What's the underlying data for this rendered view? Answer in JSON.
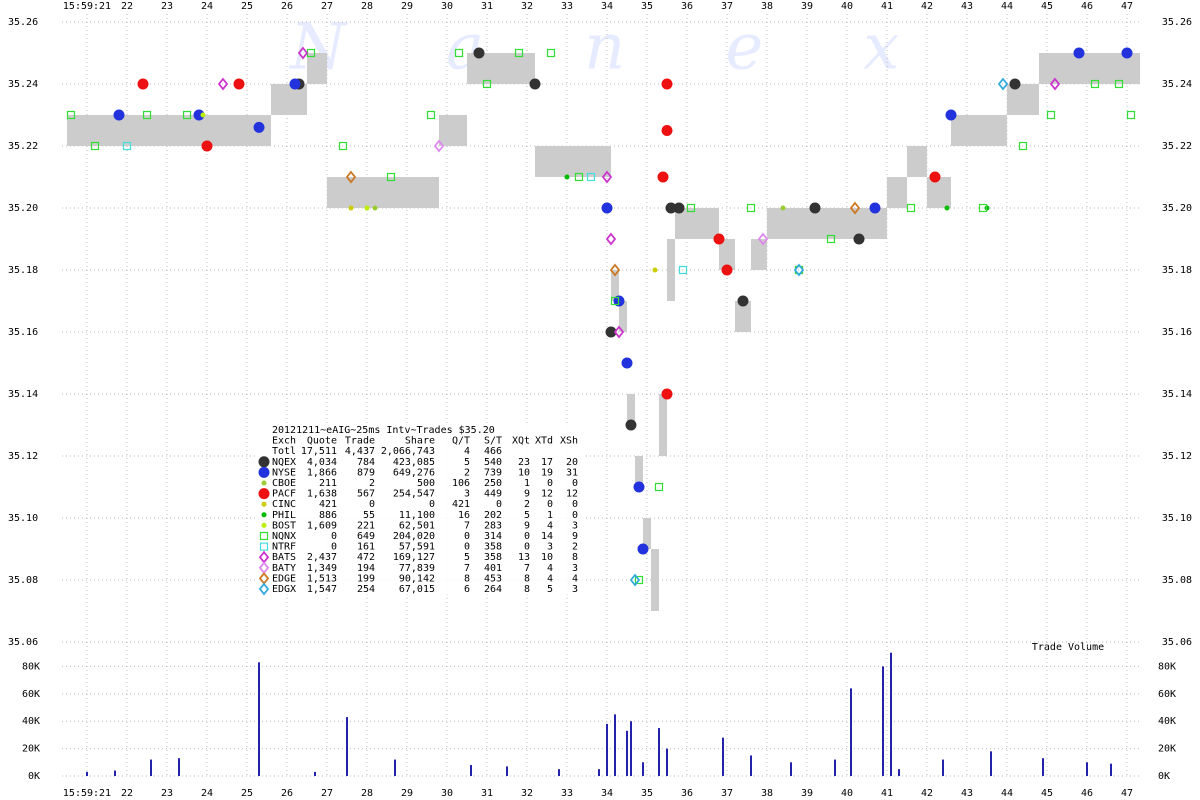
{
  "chart_data": [
    {
      "type": "scatter",
      "watermark": "Nanex",
      "grid": true,
      "xlim": [
        20.375,
        47.325
      ],
      "xticks": [
        {
          "value": 21,
          "label": "15:59:21"
        },
        22,
        23,
        24,
        25,
        26,
        27,
        28,
        29,
        30,
        31,
        32,
        33,
        34,
        35,
        36,
        37,
        38,
        39,
        40,
        41,
        42,
        43,
        44,
        45,
        46,
        47
      ],
      "ylim": [
        35.06,
        35.26
      ],
      "yticks": [
        35.06,
        35.08,
        {
          "value": 35.1,
          "label": "35.10"
        },
        35.12,
        35.14,
        35.16,
        35.18,
        {
          "value": 35.2,
          "label": "35.20"
        },
        35.22,
        35.24,
        35.26
      ],
      "band": {
        "color": "#cccccc",
        "x": [
          20.5,
          25.6,
          26.5,
          27.0,
          29.8,
          30.5,
          31.4,
          32.2,
          33.8,
          34.1,
          34.3,
          34.5,
          34.7,
          34.9,
          35.1,
          35.3,
          35.5,
          35.7,
          36.8,
          37.2,
          37.6,
          38.0,
          40.0,
          41.0,
          41.5,
          42.0,
          42.6,
          44.0,
          44.8,
          45.3,
          47.2
        ],
        "bid": [
          35.22,
          35.23,
          35.24,
          35.2,
          35.22,
          35.24,
          35.24,
          35.21,
          35.21,
          35.17,
          35.16,
          35.13,
          35.11,
          35.09,
          35.07,
          35.12,
          35.17,
          35.19,
          35.18,
          35.16,
          35.18,
          35.19,
          35.19,
          35.2,
          35.21,
          35.2,
          35.22,
          35.23,
          35.24,
          35.24,
          35.24
        ],
        "ask": [
          35.23,
          35.24,
          35.25,
          35.21,
          35.23,
          35.25,
          35.25,
          35.22,
          35.22,
          35.18,
          35.17,
          35.14,
          35.12,
          35.1,
          35.09,
          35.14,
          35.19,
          35.2,
          35.19,
          35.17,
          35.19,
          35.2,
          35.2,
          35.21,
          35.22,
          35.21,
          35.23,
          35.24,
          35.25,
          35.25,
          35.25
        ]
      },
      "series": [
        {
          "name": "NQEX",
          "color": "#333333",
          "marker": "circle",
          "stats": [
            "4,034",
            "784",
            "423,085",
            "5",
            "540",
            "23",
            "17",
            "20"
          ],
          "x": [
            26.3,
            30.8,
            32.2,
            35.6,
            35.8,
            37.4,
            39.2,
            40.3,
            34.6,
            34.1,
            44.2
          ],
          "values": [
            35.24,
            35.25,
            35.24,
            35.2,
            35.2,
            35.17,
            35.2,
            35.19,
            35.13,
            35.16,
            35.24
          ]
        },
        {
          "name": "NYSE",
          "color": "#2233dd",
          "marker": "circle",
          "stats": [
            "1,866",
            "879",
            "649,276",
            "2",
            "739",
            "10",
            "19",
            "31"
          ],
          "x": [
            25.3,
            21.8,
            23.8,
            26.2,
            34.0,
            34.3,
            34.5,
            34.8,
            34.9,
            40.7,
            42.6,
            45.8,
            47.0
          ],
          "values": [
            35.226,
            35.23,
            35.23,
            35.24,
            35.2,
            35.17,
            35.15,
            35.11,
            35.09,
            35.2,
            35.23,
            35.25,
            35.25
          ]
        },
        {
          "name": "CBOE",
          "color": "#99cc33",
          "marker": "dot",
          "stats": [
            "211",
            "2",
            "500",
            "106",
            "250",
            "1",
            "0",
            "0"
          ],
          "x": [
            28.2,
            38.4
          ],
          "values": [
            35.2,
            35.2
          ]
        },
        {
          "name": "PACF",
          "color": "#ee1111",
          "marker": "circle",
          "stats": [
            "1,638",
            "567",
            "254,547",
            "3",
            "449",
            "9",
            "12",
            "12"
          ],
          "x": [
            22.4,
            24.0,
            24.8,
            35.5,
            35.5,
            35.4,
            35.5,
            36.8,
            37.0,
            42.2
          ],
          "values": [
            35.24,
            35.22,
            35.24,
            35.24,
            35.225,
            35.21,
            35.14,
            35.19,
            35.18,
            35.21
          ]
        },
        {
          "name": "CINC",
          "color": "#cccc00",
          "marker": "dot",
          "stats": [
            "421",
            "0",
            "0",
            "421",
            "0",
            "2",
            "0",
            "0"
          ],
          "x": [
            27.6,
            35.2
          ],
          "values": [
            35.2,
            35.18
          ]
        },
        {
          "name": "PHIL",
          "color": "#00bb00",
          "marker": "dot",
          "stats": [
            "886",
            "55",
            "11,100",
            "16",
            "202",
            "5",
            "1",
            "0"
          ],
          "x": [
            33.0,
            42.5,
            43.5
          ],
          "values": [
            35.21,
            35.2,
            35.2
          ]
        },
        {
          "name": "BOST",
          "color": "#bbee00",
          "marker": "dot",
          "stats": [
            "1,609",
            "221",
            "62,501",
            "7",
            "283",
            "9",
            "4",
            "3"
          ],
          "x": [
            23.9,
            28.0
          ],
          "values": [
            35.23,
            35.2
          ]
        },
        {
          "name": "NQNX",
          "color": "#33dd33",
          "marker": "square",
          "stats": [
            "0",
            "649",
            "204,020",
            "0",
            "314",
            "0",
            "14",
            "9"
          ],
          "x": [
            20.6,
            21.2,
            22.5,
            23.5,
            26.6,
            27.4,
            28.6,
            29.6,
            30.3,
            31.0,
            31.8,
            32.6,
            33.3,
            34.2,
            34.8,
            35.3,
            36.1,
            37.6,
            38.8,
            39.6,
            41.6,
            43.4,
            44.4,
            45.1,
            46.2,
            46.8,
            47.1
          ],
          "values": [
            35.23,
            35.22,
            35.23,
            35.23,
            35.25,
            35.22,
            35.21,
            35.23,
            35.25,
            35.24,
            35.25,
            35.25,
            35.21,
            35.17,
            35.08,
            35.11,
            35.2,
            35.2,
            35.18,
            35.19,
            35.2,
            35.2,
            35.22,
            35.23,
            35.24,
            35.24,
            35.23
          ]
        },
        {
          "name": "NTRF",
          "color": "#44dddd",
          "marker": "square",
          "stats": [
            "0",
            "161",
            "57,591",
            "0",
            "358",
            "0",
            "3",
            "2"
          ],
          "x": [
            22.0,
            33.6,
            35.9
          ],
          "values": [
            35.22,
            35.21,
            35.18
          ]
        },
        {
          "name": "BATS",
          "color": "#cc33cc",
          "marker": "diamond",
          "stats": [
            "2,437",
            "472",
            "169,127",
            "5",
            "358",
            "13",
            "10",
            "8"
          ],
          "x": [
            24.4,
            26.4,
            34.0,
            34.1,
            34.3,
            45.2
          ],
          "values": [
            35.24,
            35.25,
            35.21,
            35.19,
            35.16,
            35.24
          ]
        },
        {
          "name": "BATY",
          "color": "#dd88ee",
          "marker": "diamond",
          "stats": [
            "1,349",
            "194",
            "77,839",
            "7",
            "401",
            "7",
            "4",
            "3"
          ],
          "x": [
            29.8,
            37.9
          ],
          "values": [
            35.22,
            35.19
          ]
        },
        {
          "name": "EDGE",
          "color": "#cc7722",
          "marker": "diamond",
          "stats": [
            "1,513",
            "199",
            "90,142",
            "8",
            "453",
            "8",
            "4",
            "4"
          ],
          "x": [
            34.2,
            40.2,
            27.6
          ],
          "values": [
            35.18,
            35.2,
            35.21
          ]
        },
        {
          "name": "EDGX",
          "color": "#33aadd",
          "marker": "diamond",
          "stats": [
            "1,547",
            "254",
            "67,015",
            "6",
            "264",
            "8",
            "5",
            "3"
          ],
          "x": [
            34.7,
            38.8,
            43.9
          ],
          "values": [
            35.08,
            35.18,
            35.24
          ]
        }
      ],
      "table": {
        "title": "20121211~eAIG~25ms Intv~Trades $35.20",
        "columns": [
          "Exch",
          "Quote",
          "Trade",
          "Share",
          "Q/T",
          "S/T",
          "XQt",
          "XTd",
          "XSh"
        ],
        "total": {
          "name": "Totl",
          "stats": [
            "17,511",
            "4,437",
            "2,066,743",
            "4",
            "466"
          ]
        }
      }
    },
    {
      "type": "bar",
      "title": "Trade Volume",
      "color": "#2222aa",
      "xlim": [
        20.375,
        47.325
      ],
      "xticks": [
        {
          "value": 21,
          "label": "15:59:21"
        },
        22,
        23,
        24,
        25,
        26,
        27,
        28,
        29,
        30,
        31,
        32,
        33,
        34,
        35,
        36,
        37,
        38,
        39,
        40,
        41,
        42,
        43,
        44,
        45,
        46,
        47
      ],
      "ylim": [
        0,
        92000
      ],
      "yticks": [
        {
          "value": 0,
          "label": "0K"
        },
        {
          "value": 20000,
          "label": "20K"
        },
        {
          "value": 40000,
          "label": "40K"
        },
        {
          "value": 60000,
          "label": "60K"
        },
        {
          "value": 80000,
          "label": "80K"
        }
      ],
      "x": [
        21.0,
        21.7,
        22.6,
        23.3,
        25.3,
        26.7,
        27.5,
        28.7,
        30.6,
        31.5,
        32.8,
        33.8,
        34.0,
        34.2,
        34.5,
        34.6,
        34.9,
        35.3,
        35.5,
        36.9,
        37.6,
        38.6,
        39.7,
        40.1,
        40.9,
        41.1,
        41.3,
        42.4,
        43.6,
        44.9,
        46.0,
        46.6
      ],
      "values": [
        3000,
        4000,
        12000,
        13000,
        83000,
        3000,
        43000,
        12000,
        8000,
        7000,
        5000,
        5000,
        38000,
        45000,
        33000,
        40000,
        10000,
        35000,
        20000,
        28000,
        15000,
        10000,
        12000,
        64000,
        80000,
        90000,
        5000,
        12000,
        18000,
        13000,
        10000,
        9000
      ]
    }
  ]
}
